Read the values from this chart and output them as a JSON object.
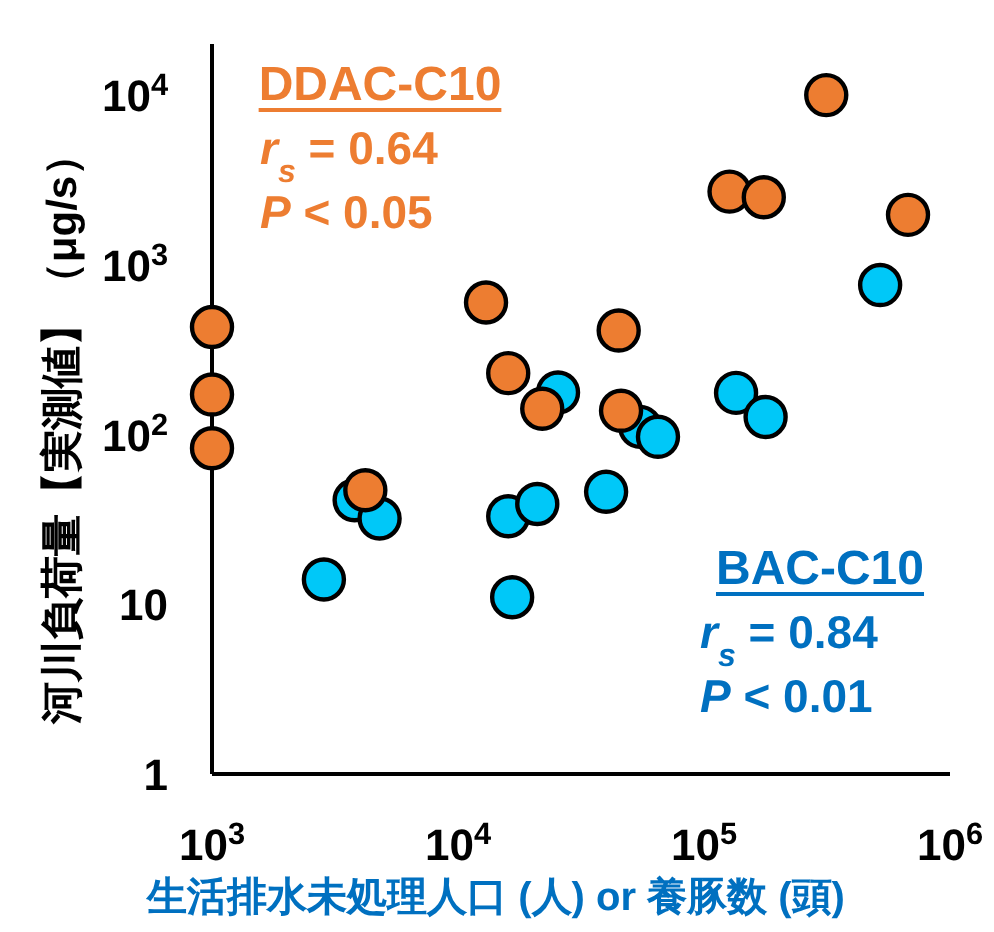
{
  "chart_data": {
    "type": "scatter",
    "xlabel": "生活排水未処理人口 (人) or 養豚数 (頭)",
    "ylabel": "河川負荷量【実測値】（μg/s）",
    "log": "xy",
    "grid": false,
    "marker": "circle",
    "xlim": [
      1000,
      1000000
    ],
    "ylim": [
      1,
      20000
    ],
    "xticks": [
      {
        "value": 1000,
        "label": "10$^{3}$"
      },
      {
        "value": 10000,
        "label": "10$^{4}$"
      },
      {
        "value": 100000,
        "label": "10$^{5}$"
      },
      {
        "value": 1000000,
        "label": "10$^{6}$"
      }
    ],
    "yticks": [
      1,
      10,
      {
        "value": 100,
        "label": "10$^{2}$"
      },
      {
        "value": 1000,
        "label": "10$^{3}$"
      },
      {
        "value": 10000,
        "label": "10$^{4}$"
      }
    ],
    "series": [
      {
        "name": "BAC-C10",
        "color": "#00c8f8",
        "x": [
          520000,
          135000,
          178000,
          25500,
          55000,
          65000,
          3800,
          4800,
          2850,
          16000,
          21000,
          40000,
          16600
        ],
        "values": [
          760,
          176,
          127,
          177,
          111,
          97,
          41,
          32,
          14,
          33,
          39,
          46,
          11
        ]
      },
      {
        "name": "DDAC-C10",
        "color": "#ed7d31",
        "x": [
          1000,
          1000,
          1000,
          13000,
          16000,
          22000,
          45000,
          46000,
          4200,
          127000,
          175000,
          314000,
          675000
        ],
        "values": [
          430,
          172,
          83,
          600,
          230,
          142,
          410,
          138,
          47,
          2700,
          2500,
          10000,
          1970
        ]
      }
    ],
    "annotations": [
      "r$_{s}$ = 0.84",
      "P < 0.01",
      "r$_{s}$ = 0.64",
      "P < 0.05"
    ]
  }
}
